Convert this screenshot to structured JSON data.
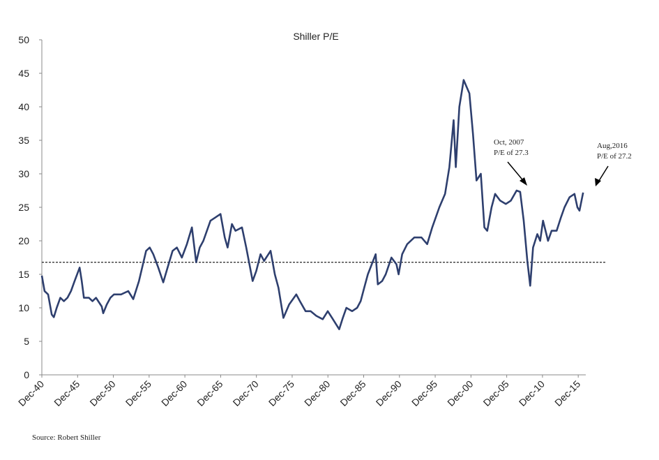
{
  "chart_data": {
    "type": "line",
    "title": "Shiller P/E",
    "source": "Source:  Robert Shiller",
    "annotations": [
      {
        "lines": [
          "Oct, 2007",
          "P/E of 27.3"
        ]
      },
      {
        "lines": [
          "Aug,2016",
          "P/E of 27.2"
        ]
      }
    ],
    "xlim": [
      1940.92,
      2019.9
    ],
    "ylim": [
      0,
      50
    ],
    "yticks": [
      0,
      5,
      10,
      15,
      20,
      25,
      30,
      35,
      40,
      45,
      50
    ],
    "xticks": [
      {
        "value": 1940.92,
        "label": "Dec-40"
      },
      {
        "value": 1945.92,
        "label": "Dec-45"
      },
      {
        "value": 1950.92,
        "label": "Dec-50"
      },
      {
        "value": 1955.92,
        "label": "Dec-55"
      },
      {
        "value": 1960.92,
        "label": "Dec-60"
      },
      {
        "value": 1965.92,
        "label": "Dec-65"
      },
      {
        "value": 1970.92,
        "label": "Dec-70"
      },
      {
        "value": 1975.92,
        "label": "Dec-75"
      },
      {
        "value": 1980.92,
        "label": "Dec-80"
      },
      {
        "value": 1985.92,
        "label": "Dec-85"
      },
      {
        "value": 1990.92,
        "label": "Dec-90"
      },
      {
        "value": 1995.92,
        "label": "Dec-95"
      },
      {
        "value": 2000.92,
        "label": "Dec-00"
      },
      {
        "value": 2005.92,
        "label": "Dec-05"
      },
      {
        "value": 2010.92,
        "label": "Dec-10"
      },
      {
        "value": 2015.92,
        "label": "Dec-15"
      }
    ],
    "reference_line": 16.8,
    "series": [
      {
        "color": "#2e3f6e",
        "x": [
          1940.92,
          1941.3,
          1941.8,
          1942.3,
          1942.6,
          1943,
          1943.5,
          1944,
          1944.5,
          1945,
          1945.5,
          1946.2,
          1946.5,
          1946.8,
          1947.5,
          1948,
          1948.5,
          1949.3,
          1949.5,
          1950,
          1950.5,
          1951,
          1952,
          1953,
          1953.7,
          1954.5,
          1955.5,
          1956,
          1956.5,
          1957.2,
          1957.9,
          1958.5,
          1959.2,
          1959.8,
          1960.5,
          1961.2,
          1961.9,
          1962.5,
          1963,
          1963.5,
          1964.5,
          1965.2,
          1965.9,
          1966.5,
          1966.9,
          1967.5,
          1968,
          1968.9,
          1969.5,
          1970.4,
          1970.9,
          1971.5,
          1972,
          1972.9,
          1973.5,
          1974,
          1974.7,
          1975.5,
          1976.5,
          1977,
          1977.8,
          1978.5,
          1979.3,
          1980.2,
          1980.9,
          1981.5,
          1982.5,
          1983,
          1983.5,
          1984.3,
          1985,
          1985.5,
          1986,
          1986.5,
          1987.6,
          1987.9,
          1988.5,
          1989,
          1989.8,
          1990.5,
          1990.8,
          1991.3,
          1992,
          1993,
          1994,
          1994.8,
          1995.5,
          1996.5,
          1997.3,
          1997.9,
          1998.5,
          1998.8,
          1999.3,
          1999.9,
          2000.3,
          2000.7,
          2001.2,
          2001.7,
          2002.3,
          2002.8,
          2003.2,
          2003.8,
          2004.3,
          2005,
          2005.8,
          2006.5,
          2007.3,
          2007.8,
          2008.3,
          2008.8,
          2009.2,
          2009.6,
          2010.2,
          2010.6,
          2011,
          2011.7,
          2012.2,
          2012.9,
          2013.5,
          2014,
          2014.7,
          2015.4,
          2015.8,
          2016.1,
          2016.6
        ],
        "values": [
          14.8,
          12.5,
          12,
          9,
          8.6,
          10,
          11.5,
          11,
          11.5,
          12.5,
          14,
          16,
          14,
          11.5,
          11.5,
          11,
          11.5,
          10.2,
          9.2,
          10.5,
          11.5,
          12,
          12,
          12.5,
          11.3,
          14,
          18.5,
          19,
          18,
          16,
          13.8,
          16,
          18.5,
          19,
          17.5,
          19.5,
          22,
          16.8,
          19,
          20,
          23,
          23.5,
          24,
          20.5,
          19,
          22.5,
          21.5,
          22,
          19,
          14,
          15.5,
          18,
          17,
          18.5,
          15,
          13,
          8.5,
          10.5,
          12,
          11,
          9.5,
          9.5,
          8.8,
          8.3,
          9.5,
          8.5,
          6.8,
          8.5,
          10,
          9.5,
          10,
          11,
          13,
          15,
          18,
          13.5,
          14,
          15,
          17.5,
          16.5,
          15,
          18,
          19.5,
          20.5,
          20.5,
          19.5,
          22,
          25,
          27,
          31,
          38,
          31,
          40,
          44,
          43,
          42,
          36,
          29,
          30,
          22,
          21.5,
          25,
          27,
          26,
          25.5,
          26,
          27.5,
          27.3,
          23,
          17,
          13.3,
          19,
          21,
          20,
          23,
          20,
          21.5,
          21.5,
          23.5,
          25,
          26.5,
          27,
          25,
          24.5,
          27.2
        ]
      }
    ]
  }
}
